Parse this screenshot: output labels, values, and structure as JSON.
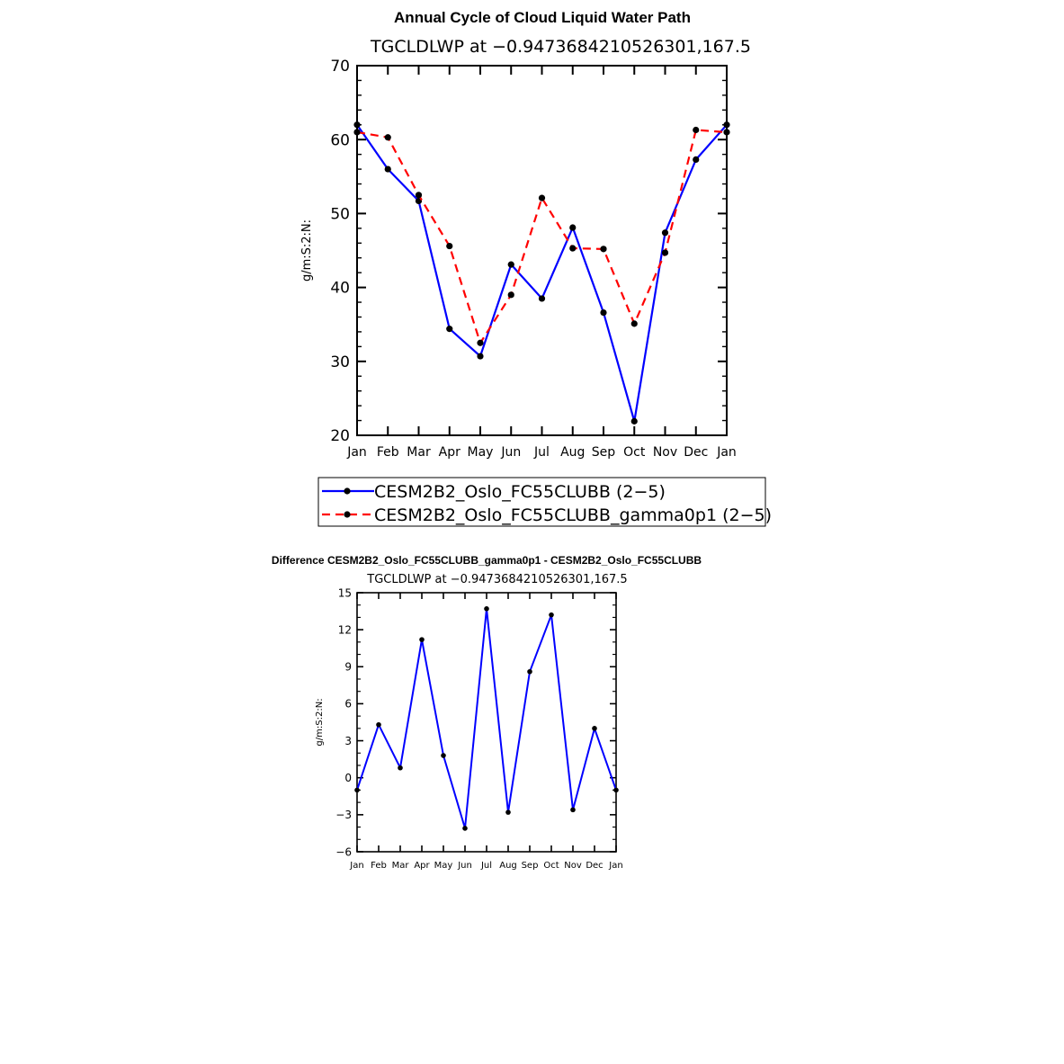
{
  "chart_data": [
    {
      "type": "line",
      "title": "Annual Cycle of Cloud Liquid Water Path",
      "subtitle": "TGCLDLWP at −0.9473684210526301,167.5",
      "xlabel": "",
      "ylabel": "g/m:S:2:N:",
      "categories": [
        "Jan",
        "Feb",
        "Mar",
        "Apr",
        "May",
        "Jun",
        "Jul",
        "Aug",
        "Sep",
        "Oct",
        "Nov",
        "Dec",
        "Jan"
      ],
      "ylim": [
        20,
        70
      ],
      "yticks": [
        "20",
        "30",
        "40",
        "50",
        "60",
        "70"
      ],
      "grid": false,
      "legend_position": "bottom",
      "series": [
        {
          "name": "CESM2B2_Oslo_FC55CLUBB (2−5)",
          "color": "#0000ff",
          "dash": "solid",
          "values": [
            62.0,
            56.0,
            51.7,
            34.4,
            30.7,
            43.1,
            38.5,
            48.1,
            36.6,
            21.9,
            47.4,
            57.3,
            62.0
          ]
        },
        {
          "name": "CESM2B2_Oslo_FC55CLUBB_gamma0p1 (2−5)",
          "color": "#ff0000",
          "dash": "dashed",
          "values": [
            61.0,
            60.3,
            52.5,
            45.6,
            32.5,
            39.0,
            52.1,
            45.3,
            45.2,
            35.1,
            44.7,
            61.3,
            61.0
          ]
        }
      ]
    },
    {
      "type": "line",
      "title": "Difference CESM2B2_Oslo_FC55CLUBB_gamma0p1 - CESM2B2_Oslo_FC55CLUBB",
      "subtitle": "TGCLDLWP at −0.9473684210526301,167.5",
      "xlabel": "",
      "ylabel": "g/m:S:2:N:",
      "categories": [
        "Jan",
        "Feb",
        "Mar",
        "Apr",
        "May",
        "Jun",
        "Jul",
        "Aug",
        "Sep",
        "Oct",
        "Nov",
        "Dec",
        "Jan"
      ],
      "ylim": [
        -6,
        15
      ],
      "yticks": [
        "−6",
        "−3",
        "0",
        "3",
        "6",
        "9",
        "12",
        "15"
      ],
      "grid": false,
      "series": [
        {
          "color": "#0000ff",
          "dash": "solid",
          "values": [
            -1.0,
            4.3,
            0.8,
            11.2,
            1.8,
            -4.1,
            13.7,
            -2.8,
            8.6,
            13.2,
            -2.6,
            4.0,
            -1.0
          ]
        }
      ]
    }
  ]
}
